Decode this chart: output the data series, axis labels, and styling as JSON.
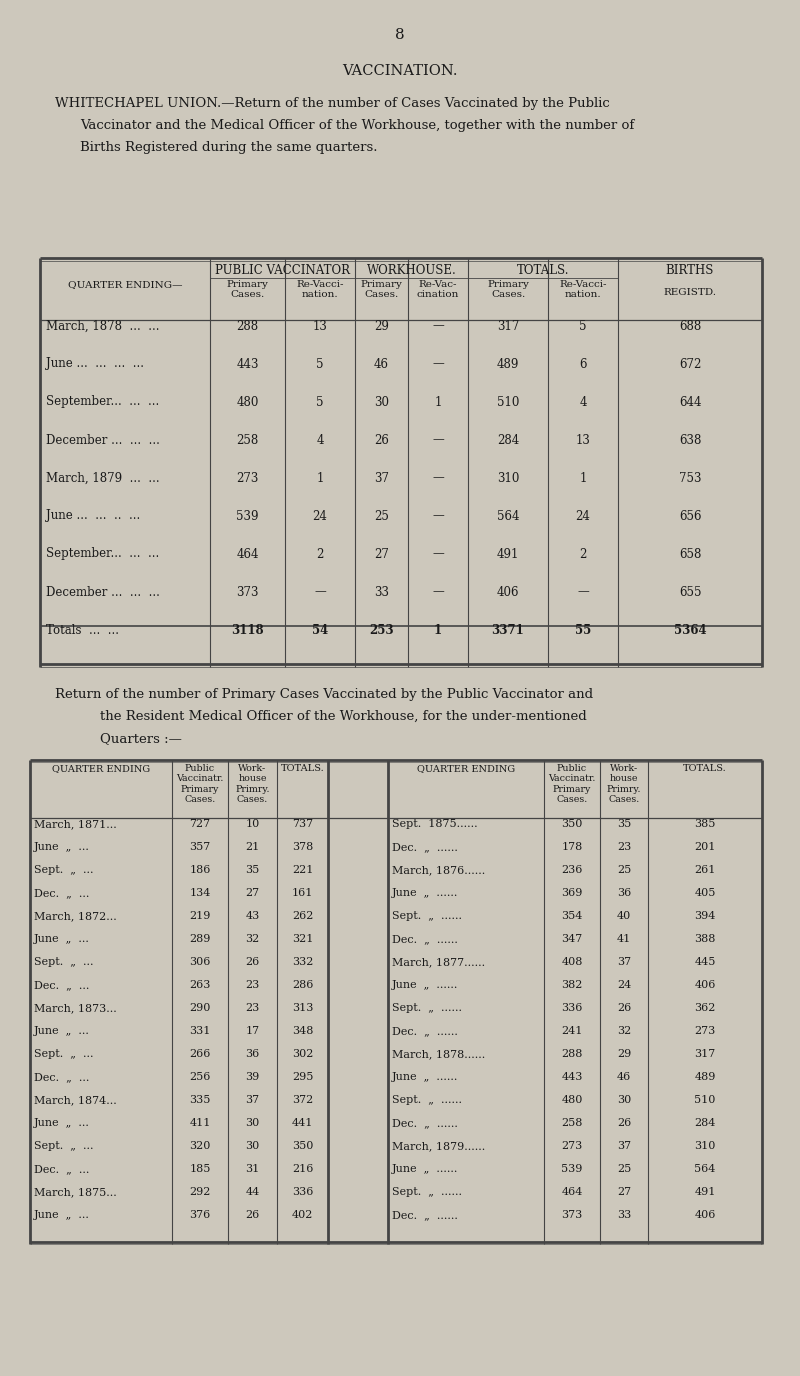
{
  "page_number": "8",
  "title": "VACCINATION.",
  "bg_color": "#cdc8bc",
  "text_color": "#1a1a1a",
  "line_color": "#444444",
  "table1": {
    "rows": [
      [
        "March, 1878  ...  ...",
        "288",
        "13",
        "29",
        "—",
        "317",
        "5",
        "688"
      ],
      [
        "June ...  ...  ...  ...",
        "443",
        "5",
        "46",
        "—",
        "489",
        "6",
        "672"
      ],
      [
        "September...  ...  ...",
        "480",
        "5",
        "30",
        "1",
        "510",
        "4",
        "644"
      ],
      [
        "December ...  ...  ...",
        "258",
        "4",
        "26",
        "—",
        "284",
        "13",
        "638"
      ],
      [
        "March, 1879  ...  ...",
        "273",
        "1",
        "37",
        "—",
        "310",
        "1",
        "753"
      ],
      [
        "June ...  ...  ..  ...",
        "539",
        "24",
        "25",
        "—",
        "564",
        "24",
        "656"
      ],
      [
        "September...  ...  ...",
        "464",
        "2",
        "27",
        "—",
        "491",
        "2",
        "658"
      ],
      [
        "December ...  ...  ...",
        "373",
        "—",
        "33",
        "—",
        "406",
        "—",
        "655"
      ],
      [
        "Totals  ...  ...",
        "3118",
        "54",
        "253",
        "1",
        "3371",
        "55",
        "5364"
      ]
    ]
  },
  "table2": {
    "rows_left": [
      [
        "March, 1871...",
        "727",
        "10",
        "737"
      ],
      [
        "June  „  ...",
        "357",
        "21",
        "378"
      ],
      [
        "Sept.  „  ...",
        "186",
        "35",
        "221"
      ],
      [
        "Dec.  „  ...",
        "134",
        "27",
        "161"
      ],
      [
        "March, 1872...",
        "219",
        "43",
        "262"
      ],
      [
        "June  „  ...",
        "289",
        "32",
        "321"
      ],
      [
        "Sept.  „  ...",
        "306",
        "26",
        "332"
      ],
      [
        "Dec.  „  ...",
        "263",
        "23",
        "286"
      ],
      [
        "March, 1873...",
        "290",
        "23",
        "313"
      ],
      [
        "June  „  ...",
        "331",
        "17",
        "348"
      ],
      [
        "Sept.  „  ...",
        "266",
        "36",
        "302"
      ],
      [
        "Dec.  „  ...",
        "256",
        "39",
        "295"
      ],
      [
        "March, 1874...",
        "335",
        "37",
        "372"
      ],
      [
        "June  „  ...",
        "411",
        "30",
        "441"
      ],
      [
        "Sept.  „  ...",
        "320",
        "30",
        "350"
      ],
      [
        "Dec.  „  ...",
        "185",
        "31",
        "216"
      ],
      [
        "March, 1875...",
        "292",
        "44",
        "336"
      ],
      [
        "June  „  ...",
        "376",
        "26",
        "402"
      ]
    ],
    "rows_right": [
      [
        "Sept.  1875......",
        "350",
        "35",
        "385"
      ],
      [
        "Dec.  „  ......",
        "178",
        "23",
        "201"
      ],
      [
        "March, 1876......",
        "236",
        "25",
        "261"
      ],
      [
        "June  „  ......",
        "369",
        "36",
        "405"
      ],
      [
        "Sept.  „  ......",
        "354",
        "40",
        "394"
      ],
      [
        "Dec.  „  ......",
        "347",
        "41",
        "388"
      ],
      [
        "March, 1877......",
        "408",
        "37",
        "445"
      ],
      [
        "June  „  ......",
        "382",
        "24",
        "406"
      ],
      [
        "Sept.  „  ......",
        "336",
        "26",
        "362"
      ],
      [
        "Dec.  „  ......",
        "241",
        "32",
        "273"
      ],
      [
        "March, 1878......",
        "288",
        "29",
        "317"
      ],
      [
        "June  „  ......",
        "443",
        "46",
        "489"
      ],
      [
        "Sept.  „  ......",
        "480",
        "30",
        "510"
      ],
      [
        "Dec.  „  ......",
        "258",
        "26",
        "284"
      ],
      [
        "March, 1879......",
        "273",
        "37",
        "310"
      ],
      [
        "June  „  ......",
        "539",
        "25",
        "564"
      ],
      [
        "Sept.  „  ......",
        "464",
        "27",
        "491"
      ],
      [
        "Dec.  „  ......",
        "373",
        "33",
        "406"
      ]
    ]
  }
}
